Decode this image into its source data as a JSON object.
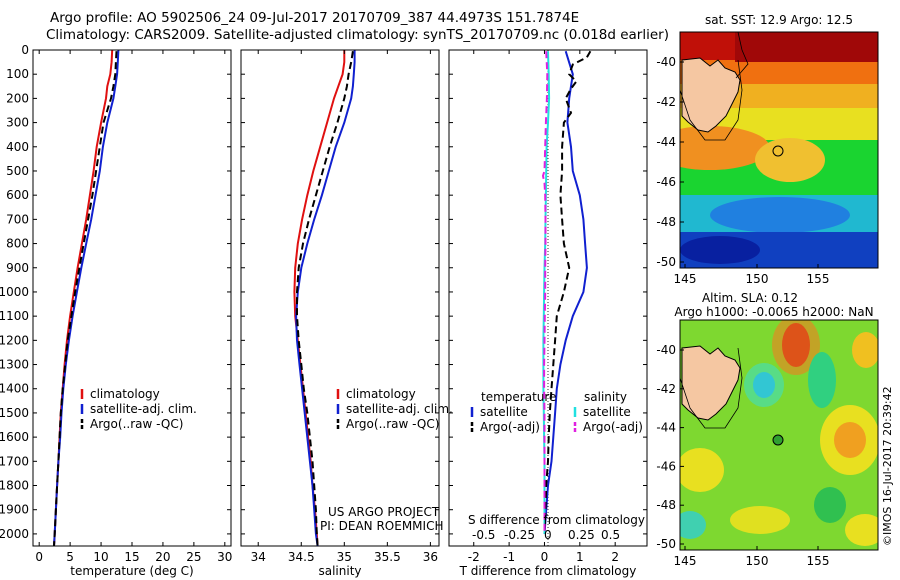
{
  "header": {
    "line1": "Argo profile: AO 5902506_24 09-Jul-2017 20170709_387 44.4973S 151.7874E",
    "line2": "Climatology: CARS2009. Satellite-adjusted climatology: synTS_20170709.nc (0.018d earlier)"
  },
  "panels": {
    "pi": [
      "US ARGO PROJECT",
      "PI: DEAN ROEMMICH"
    ],
    "diff_legend_heads": [
      "temperature",
      "salinity"
    ],
    "diff_title": "S difference from climatology",
    "diff_ticks": [
      "-0.5",
      "-0.25",
      "0",
      "0.25",
      "0.5"
    ]
  },
  "maps": {
    "sst_title": "sat. SST: 12.9 Argo: 12.5",
    "sla_title1": "Altim. SLA: 0.12",
    "sla_title2": "Argo h1000: -0.0065 h2000: NaN",
    "xticks": [
      "145",
      "150",
      "155"
    ],
    "yticks": [
      "-40",
      "-42",
      "-44",
      "-46",
      "-48",
      "-50"
    ],
    "stamp": "©IMOS 16-Jul-2017 20:39:42"
  },
  "colors": {
    "climatology": "#e01010",
    "satellite": "#1020d0",
    "argo": "#000000",
    "sal_satellite": "#20e0e0",
    "sal_argo": "#e020e0",
    "land": "#f5c7a2"
  },
  "chart_data": [
    {
      "type": "line",
      "xlabel": "temperature (deg C)",
      "ylim": [
        2050,
        0
      ],
      "xlim": [
        -1,
        31
      ],
      "xticks": [
        0,
        5,
        10,
        15,
        20,
        25,
        30
      ],
      "yticks": [
        0,
        100,
        200,
        300,
        400,
        500,
        600,
        700,
        800,
        900,
        1000,
        1100,
        1200,
        1300,
        1400,
        1500,
        1600,
        1700,
        1800,
        1900,
        2000
      ],
      "legend": [
        "climatology",
        "satellite-adj. clim.",
        "Argo(..raw -QC)"
      ],
      "series": [
        {
          "name": "climatology",
          "style": "solid",
          "color": "#e01010",
          "depth": [
            0,
            50,
            100,
            150,
            200,
            300,
            400,
            500,
            600,
            700,
            800,
            900,
            1000,
            1100,
            1200,
            1300,
            1400,
            1500,
            1600,
            1700,
            1800,
            1900,
            2000,
            2050
          ],
          "values": [
            11.8,
            11.7,
            11.5,
            11.0,
            10.8,
            10.0,
            9.3,
            8.8,
            8.2,
            7.6,
            6.9,
            6.2,
            5.6,
            5.0,
            4.5,
            4.1,
            3.8,
            3.5,
            3.3,
            3.1,
            2.9,
            2.7,
            2.5,
            2.4
          ]
        },
        {
          "name": "satellite-adj. clim.",
          "style": "solid",
          "color": "#1020d0",
          "depth": [
            0,
            50,
            100,
            150,
            200,
            300,
            400,
            500,
            600,
            700,
            800,
            900,
            1000,
            1100,
            1200,
            1300,
            1400,
            1500,
            1600,
            1700,
            1800,
            1900,
            2000,
            2050
          ],
          "values": [
            12.8,
            12.7,
            12.6,
            12.3,
            12.0,
            11.0,
            10.3,
            9.8,
            9.1,
            8.4,
            7.6,
            6.8,
            6.1,
            5.4,
            4.8,
            4.3,
            3.9,
            3.6,
            3.4,
            3.1,
            2.9,
            2.7,
            2.5,
            2.4
          ]
        },
        {
          "name": "Argo(..raw -QC)",
          "style": "dashed",
          "color": "#000000",
          "depth": [
            5,
            50,
            100,
            150,
            200,
            300,
            400,
            500,
            600,
            700,
            800,
            900,
            1000,
            1100,
            1200,
            1300,
            1400,
            1500,
            1600,
            1700,
            1800,
            1900,
            2000,
            2050
          ],
          "values": [
            12.5,
            12.4,
            12.3,
            12.0,
            11.6,
            10.4,
            9.8,
            9.2,
            8.6,
            7.9,
            7.2,
            6.5,
            5.8,
            5.2,
            4.6,
            4.2,
            3.8,
            3.5,
            3.3,
            3.1,
            2.9,
            2.7,
            2.5,
            2.4
          ]
        }
      ]
    },
    {
      "type": "line",
      "xlabel": "salinity",
      "ylim": [
        2050,
        0
      ],
      "xlim": [
        33.8,
        36.1
      ],
      "xticks": [
        34,
        34.5,
        35,
        35.5,
        36
      ],
      "legend": [
        "climatology",
        "satellite-adj. clim.",
        "Argo(..raw -QC)"
      ],
      "series": [
        {
          "name": "climatology",
          "style": "solid",
          "color": "#e01010",
          "depth": [
            0,
            50,
            100,
            150,
            200,
            300,
            400,
            500,
            600,
            700,
            800,
            900,
            1000,
            1100,
            1200,
            1300,
            1400,
            1500,
            1600,
            1700,
            1800,
            1900,
            2000,
            2050
          ],
          "values": [
            35.0,
            35.0,
            34.98,
            34.93,
            34.88,
            34.8,
            34.72,
            34.64,
            34.57,
            34.51,
            34.46,
            34.43,
            34.42,
            34.43,
            34.46,
            34.49,
            34.52,
            34.55,
            34.58,
            34.61,
            34.63,
            34.66,
            34.68,
            34.69
          ]
        },
        {
          "name": "satellite-adj. clim.",
          "style": "solid",
          "color": "#1020d0",
          "depth": [
            0,
            50,
            100,
            150,
            200,
            300,
            400,
            500,
            600,
            700,
            800,
            900,
            1000,
            1100,
            1200,
            1300,
            1400,
            1500,
            1600,
            1700,
            1800,
            1900,
            2000,
            2050
          ],
          "values": [
            35.12,
            35.12,
            35.11,
            35.1,
            35.08,
            35.0,
            34.9,
            34.82,
            34.74,
            34.65,
            34.57,
            34.5,
            34.46,
            34.44,
            34.45,
            34.48,
            34.51,
            34.54,
            34.57,
            34.6,
            34.63,
            34.65,
            34.67,
            34.69
          ]
        },
        {
          "name": "Argo(..raw -QC)",
          "style": "dashed",
          "color": "#000000",
          "depth": [
            5,
            50,
            100,
            150,
            200,
            300,
            400,
            500,
            600,
            700,
            800,
            900,
            1000,
            1100,
            1200,
            1300,
            1400,
            1500,
            1600,
            1700,
            1800,
            1900,
            2000,
            2050
          ],
          "values": [
            35.1,
            35.08,
            35.05,
            35.03,
            35.0,
            34.92,
            34.83,
            34.75,
            34.67,
            34.59,
            34.52,
            34.47,
            34.45,
            34.45,
            34.47,
            34.5,
            34.53,
            34.57,
            34.6,
            34.63,
            34.65,
            34.67,
            34.68,
            34.69
          ]
        }
      ]
    },
    {
      "type": "line",
      "xlabel": "T difference from climatology",
      "ylim": [
        2050,
        0
      ],
      "xlim": [
        -2.7,
        2.9
      ],
      "xticks": [
        -2,
        -1,
        0,
        1,
        2
      ],
      "legend": [
        "satellite",
        "Argo(-adj)",
        "satellite",
        "Argo(-adj)"
      ],
      "series": [
        {
          "name": "satellite",
          "style": "solid",
          "color": "#1020d0",
          "depth": [
            5,
            100,
            200,
            300,
            400,
            500,
            600,
            700,
            800,
            900,
            1000,
            1100,
            1200,
            1300,
            1400,
            1500,
            1600,
            1700,
            1800,
            1900,
            2000
          ],
          "values": [
            0.6,
            0.8,
            0.7,
            0.65,
            0.75,
            0.8,
            1.0,
            1.1,
            1.15,
            1.2,
            1.1,
            0.8,
            0.6,
            0.45,
            0.35,
            0.3,
            0.25,
            0.2,
            0.1,
            0.05,
            0.0
          ]
        },
        {
          "name": "Argo(-adj)",
          "style": "dashed",
          "color": "#000000",
          "depth": [
            5,
            30,
            60,
            100,
            130,
            160,
            200,
            260,
            300,
            400,
            500,
            600,
            700,
            800,
            900,
            1000,
            1100,
            1200,
            1300,
            1400,
            1500,
            1600,
            1700,
            1800,
            1900,
            2000
          ],
          "values": [
            1.3,
            1.2,
            0.8,
            0.7,
            0.9,
            0.75,
            0.6,
            0.75,
            0.55,
            0.5,
            0.5,
            0.45,
            0.5,
            0.55,
            0.7,
            0.55,
            0.35,
            0.3,
            0.25,
            0.2,
            0.15,
            0.12,
            0.1,
            0.05,
            0.03,
            0.0
          ]
        },
        {
          "name": "satellite",
          "style": "solid",
          "color": "#20e0e0",
          "depth": [
            5,
            100,
            200,
            300,
            400,
            500,
            600,
            700,
            800,
            900,
            1000,
            1100,
            1200,
            1300,
            1400,
            1500,
            1600,
            1700,
            1800,
            1900,
            2000
          ],
          "values": [
            0.1,
            0.12,
            0.13,
            0.1,
            0.06,
            0.05,
            0.04,
            0.03,
            0.02,
            0.0,
            -0.01,
            -0.02,
            -0.03,
            -0.03,
            -0.03,
            -0.02,
            -0.01,
            0.0,
            0.0,
            0.0,
            0.0
          ]
        },
        {
          "name": "Argo(-adj)",
          "style": "dashed",
          "color": "#e020e0",
          "depth": [
            5,
            100,
            200,
            300,
            400,
            500,
            520,
            550,
            600,
            700,
            800,
            900,
            1000,
            1100,
            1200,
            1300,
            1400,
            1500,
            1600,
            1700,
            1800,
            1900,
            2000
          ],
          "values": [
            0.05,
            0.08,
            0.07,
            0.04,
            0.02,
            0.0,
            -0.04,
            0.0,
            0.02,
            0.03,
            0.03,
            0.02,
            0.02,
            0.01,
            0.0,
            -0.01,
            -0.01,
            0.0,
            0.0,
            0.0,
            0.0,
            0.0,
            0.0
          ]
        }
      ]
    }
  ]
}
